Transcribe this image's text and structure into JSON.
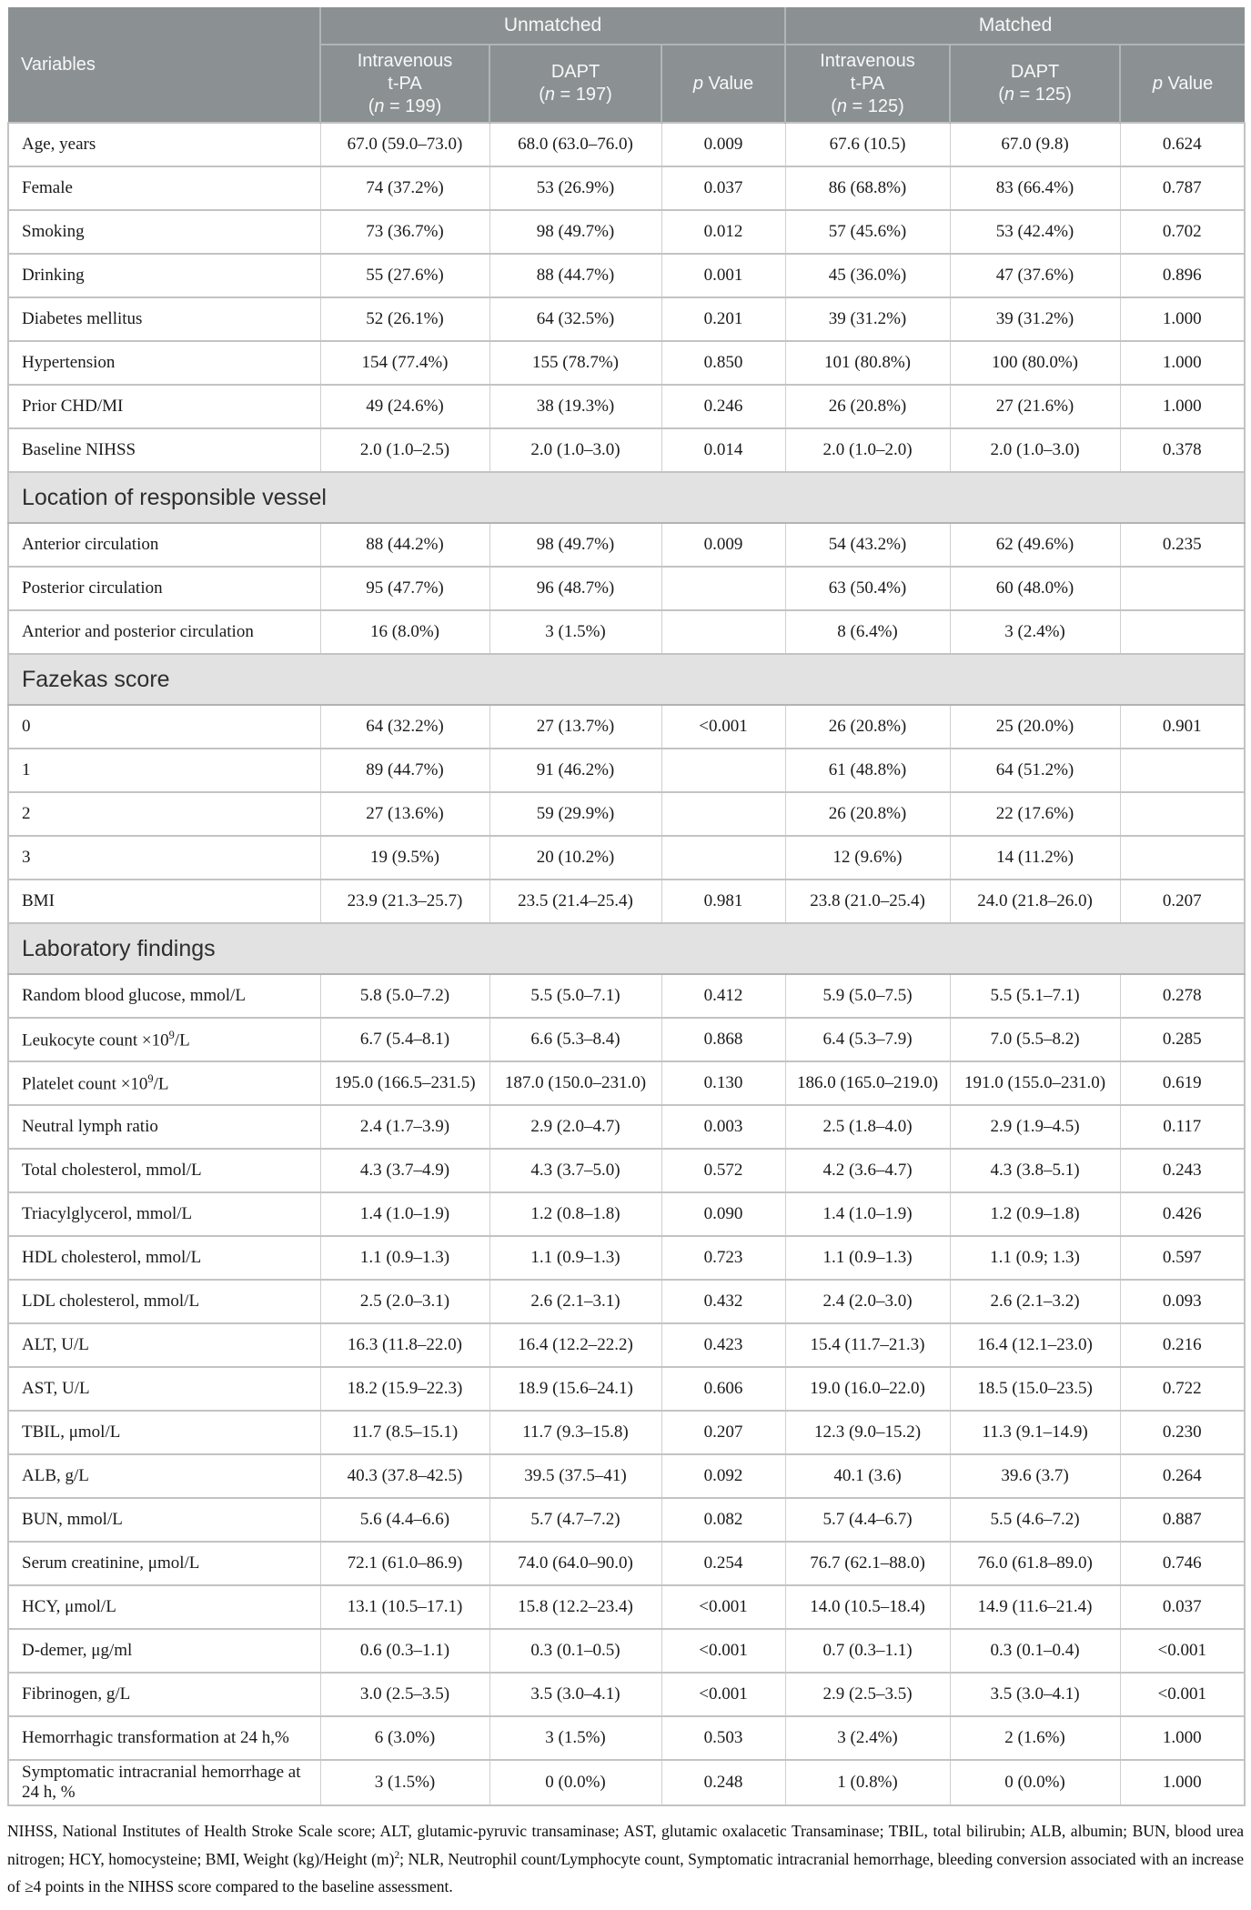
{
  "table": {
    "header": {
      "variables_label": "Variables",
      "groups": [
        {
          "label": "Unmatched",
          "span": 3
        },
        {
          "label": "Matched",
          "span": 3
        }
      ],
      "columns": [
        "Intravenous\nt-PA\n(*n* = 199)",
        "DAPT\n(*n* = 197)",
        "*p* Value",
        "Intravenous\nt-PA\n(*n* = 125)",
        "DAPT\n(*n* = 125)",
        "*p* Value"
      ]
    },
    "rows": [
      {
        "type": "data",
        "label": "Age, years",
        "cells": [
          "67.0 (59.0–73.0)",
          "68.0 (63.0–76.0)",
          "0.009",
          "67.6 (10.5)",
          "67.0 (9.8)",
          "0.624"
        ]
      },
      {
        "type": "data",
        "label": "Female",
        "cells": [
          "74 (37.2%)",
          "53 (26.9%)",
          "0.037",
          "86 (68.8%)",
          "83 (66.4%)",
          "0.787"
        ]
      },
      {
        "type": "data",
        "label": "Smoking",
        "cells": [
          "73 (36.7%)",
          "98 (49.7%)",
          "0.012",
          "57 (45.6%)",
          "53 (42.4%)",
          "0.702"
        ]
      },
      {
        "type": "data",
        "label": "Drinking",
        "cells": [
          "55 (27.6%)",
          "88 (44.7%)",
          "0.001",
          "45 (36.0%)",
          "47 (37.6%)",
          "0.896"
        ]
      },
      {
        "type": "data",
        "label": "Diabetes mellitus",
        "cells": [
          "52 (26.1%)",
          "64 (32.5%)",
          "0.201",
          "39 (31.2%)",
          "39 (31.2%)",
          "1.000"
        ]
      },
      {
        "type": "data",
        "label": "Hypertension",
        "cells": [
          "154 (77.4%)",
          "155 (78.7%)",
          "0.850",
          "101 (80.8%)",
          "100 (80.0%)",
          "1.000"
        ]
      },
      {
        "type": "data",
        "label": "Prior CHD/MI",
        "cells": [
          "49 (24.6%)",
          "38 (19.3%)",
          "0.246",
          "26 (20.8%)",
          "27 (21.6%)",
          "1.000"
        ]
      },
      {
        "type": "data",
        "label": "Baseline NIHSS",
        "cells": [
          "2.0 (1.0–2.5)",
          "2.0 (1.0–3.0)",
          "0.014",
          "2.0 (1.0–2.0)",
          "2.0 (1.0–3.0)",
          "0.378"
        ]
      },
      {
        "type": "section",
        "label": "Location of responsible vessel"
      },
      {
        "type": "data",
        "label": "Anterior circulation",
        "cells": [
          "88 (44.2%)",
          "98 (49.7%)",
          "0.009",
          "54 (43.2%)",
          "62 (49.6%)",
          "0.235"
        ]
      },
      {
        "type": "data",
        "label": "Posterior circulation",
        "cells": [
          "95 (47.7%)",
          "96 (48.7%)",
          "",
          "63 (50.4%)",
          "60 (48.0%)",
          ""
        ]
      },
      {
        "type": "data",
        "label": "Anterior and posterior circulation",
        "cells": [
          "16 (8.0%)",
          "3 (1.5%)",
          "",
          "8 (6.4%)",
          "3 (2.4%)",
          ""
        ]
      },
      {
        "type": "section",
        "label": "Fazekas score"
      },
      {
        "type": "data",
        "label": "0",
        "cells": [
          "64 (32.2%)",
          "27 (13.7%)",
          "<0.001",
          "26 (20.8%)",
          "25 (20.0%)",
          "0.901"
        ]
      },
      {
        "type": "data",
        "label": "1",
        "cells": [
          "89 (44.7%)",
          "91 (46.2%)",
          "",
          "61 (48.8%)",
          "64 (51.2%)",
          ""
        ]
      },
      {
        "type": "data",
        "label": "2",
        "cells": [
          "27 (13.6%)",
          "59 (29.9%)",
          "",
          "26 (20.8%)",
          "22 (17.6%)",
          ""
        ]
      },
      {
        "type": "data",
        "label": "3",
        "cells": [
          "19 (9.5%)",
          "20 (10.2%)",
          "",
          "12 (9.6%)",
          "14 (11.2%)",
          ""
        ]
      },
      {
        "type": "data",
        "label": "BMI",
        "cells": [
          "23.9 (21.3–25.7)",
          "23.5 (21.4–25.4)",
          "0.981",
          "23.8 (21.0–25.4)",
          "24.0 (21.8–26.0)",
          "0.207"
        ]
      },
      {
        "type": "section",
        "label": "Laboratory findings"
      },
      {
        "type": "data",
        "label": "Random blood glucose, mmol/L",
        "cells": [
          "5.8 (5.0–7.2)",
          "5.5 (5.0–7.1)",
          "0.412",
          "5.9 (5.0–7.5)",
          "5.5 (5.1–7.1)",
          "0.278"
        ]
      },
      {
        "type": "data",
        "label": "Leukocyte count ×10^{9}/L",
        "cells": [
          "6.7 (5.4–8.1)",
          "6.6 (5.3–8.4)",
          "0.868",
          "6.4 (5.3–7.9)",
          "7.0 (5.5–8.2)",
          "0.285"
        ]
      },
      {
        "type": "data",
        "label": "Platelet count ×10^{9}/L",
        "cells": [
          "195.0 (166.5–231.5)",
          "187.0 (150.0–231.0)",
          "0.130",
          "186.0 (165.0–219.0)",
          "191.0 (155.0–231.0)",
          "0.619"
        ]
      },
      {
        "type": "data",
        "label": "Neutral lymph ratio",
        "cells": [
          "2.4 (1.7–3.9)",
          "2.9 (2.0–4.7)",
          "0.003",
          "2.5 (1.8–4.0)",
          "2.9 (1.9–4.5)",
          "0.117"
        ]
      },
      {
        "type": "data",
        "label": "Total cholesterol, mmol/L",
        "cells": [
          "4.3 (3.7–4.9)",
          "4.3 (3.7–5.0)",
          "0.572",
          "4.2 (3.6–4.7)",
          "4.3 (3.8–5.1)",
          "0.243"
        ]
      },
      {
        "type": "data",
        "label": "Triacylglycerol, mmol/L",
        "cells": [
          "1.4 (1.0–1.9)",
          "1.2 (0.8–1.8)",
          "0.090",
          "1.4 (1.0–1.9)",
          "1.2 (0.9–1.8)",
          "0.426"
        ]
      },
      {
        "type": "data",
        "label": "HDL cholesterol, mmol/L",
        "cells": [
          "1.1 (0.9–1.3)",
          "1.1 (0.9–1.3)",
          "0.723",
          "1.1 (0.9–1.3)",
          "1.1 (0.9; 1.3)",
          "0.597"
        ]
      },
      {
        "type": "data",
        "label": "LDL cholesterol, mmol/L",
        "cells": [
          "2.5 (2.0–3.1)",
          "2.6 (2.1–3.1)",
          "0.432",
          "2.4 (2.0–3.0)",
          "2.6 (2.1–3.2)",
          "0.093"
        ]
      },
      {
        "type": "data",
        "label": "ALT, U/L",
        "cells": [
          "16.3 (11.8–22.0)",
          "16.4 (12.2–22.2)",
          "0.423",
          "15.4 (11.7–21.3)",
          "16.4 (12.1–23.0)",
          "0.216"
        ]
      },
      {
        "type": "data",
        "label": "AST, U/L",
        "cells": [
          "18.2 (15.9–22.3)",
          "18.9 (15.6–24.1)",
          "0.606",
          "19.0 (16.0–22.0)",
          "18.5 (15.0–23.5)",
          "0.722"
        ]
      },
      {
        "type": "data",
        "label": "TBIL, μmol/L",
        "cells": [
          "11.7 (8.5–15.1)",
          "11.7 (9.3–15.8)",
          "0.207",
          "12.3 (9.0–15.2)",
          "11.3 (9.1–14.9)",
          "0.230"
        ]
      },
      {
        "type": "data",
        "label": "ALB, g/L",
        "cells": [
          "40.3 (37.8–42.5)",
          "39.5 (37.5–41)",
          "0.092",
          "40.1 (3.6)",
          "39.6 (3.7)",
          "0.264"
        ]
      },
      {
        "type": "data",
        "label": "BUN, mmol/L",
        "cells": [
          "5.6 (4.4–6.6)",
          "5.7 (4.7–7.2)",
          "0.082",
          "5.7 (4.4–6.7)",
          "5.5 (4.6–7.2)",
          "0.887"
        ]
      },
      {
        "type": "data",
        "label": "Serum creatinine, μmol/L",
        "cells": [
          "72.1 (61.0–86.9)",
          "74.0 (64.0–90.0)",
          "0.254",
          "76.7 (62.1–88.0)",
          "76.0 (61.8–89.0)",
          "0.746"
        ]
      },
      {
        "type": "data",
        "label": "HCY, μmol/L",
        "cells": [
          "13.1 (10.5–17.1)",
          "15.8 (12.2–23.4)",
          "<0.001",
          "14.0 (10.5–18.4)",
          "14.9 (11.6–21.4)",
          "0.037"
        ]
      },
      {
        "type": "data",
        "label": "D-demer, μg/ml",
        "cells": [
          "0.6 (0.3–1.1)",
          "0.3 (0.1–0.5)",
          "<0.001",
          "0.7 (0.3–1.1)",
          "0.3 (0.1–0.4)",
          "<0.001"
        ]
      },
      {
        "type": "data",
        "label": "Fibrinogen, g/L",
        "cells": [
          "3.0 (2.5–3.5)",
          "3.5 (3.0–4.1)",
          "<0.001",
          "2.9 (2.5–3.5)",
          "3.5 (3.0–4.1)",
          "<0.001"
        ]
      },
      {
        "type": "data",
        "label": "Hemorrhagic transformation at 24 h,%",
        "cells": [
          "6 (3.0%)",
          "3 (1.5%)",
          "0.503",
          "3 (2.4%)",
          "2 (1.6%)",
          "1.000"
        ]
      },
      {
        "type": "data",
        "label": "Symptomatic intracranial hemorrhage at 24 h, %",
        "cells": [
          "3 (1.5%)",
          "0 (0.0%)",
          "0.248",
          "1 (0.8%)",
          "0 (0.0%)",
          "1.000"
        ]
      }
    ]
  },
  "footnote": "NIHSS, National Institutes of Health Stroke Scale score; ALT, glutamic-pyruvic transaminase; AST, glutamic oxalacetic Transaminase; TBIL, total bilirubin; ALB, albumin; BUN, blood urea nitrogen; HCY, homocysteine; BMI, Weight (kg)/Height (m)^{2}; NLR, Neutrophil count/Lymphocyte count, Symptomatic intracranial hemorrhage, bleeding conversion associated with an increase of ≥4 points in the NIHSS score compared to the baseline assessment."
}
